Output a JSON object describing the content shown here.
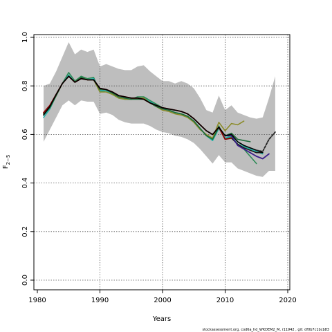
{
  "chart_data": {
    "type": "line",
    "title": "",
    "xlabel": "Years",
    "ylabel": "F",
    "ylabel_subscript": "2−5",
    "xlim": [
      1980,
      2020
    ],
    "ylim": [
      0,
      1
    ],
    "x_ticks": [
      1980,
      1990,
      2000,
      2010,
      2020
    ],
    "y_ticks": [
      0.0,
      0.2,
      0.4,
      0.6,
      0.8,
      1.0
    ],
    "y_tick_labels": [
      "0.0",
      "0.2",
      "0.4",
      "0.6",
      "0.8",
      "1.0"
    ],
    "grid": true,
    "confidence_band": {
      "color": "#bebebe",
      "x": [
        1981,
        1982,
        1983,
        1984,
        1985,
        1986,
        1987,
        1988,
        1989,
        1990,
        1991,
        1992,
        1993,
        1994,
        1995,
        1996,
        1997,
        1998,
        1999,
        2000,
        2001,
        2002,
        2003,
        2004,
        2005,
        2006,
        2007,
        2008,
        2009,
        2010,
        2011,
        2012,
        2013,
        2014,
        2015,
        2016,
        2017,
        2018
      ],
      "upper": [
        0.8,
        0.81,
        0.86,
        0.92,
        0.98,
        0.93,
        0.95,
        0.94,
        0.95,
        0.88,
        0.89,
        0.88,
        0.87,
        0.865,
        0.865,
        0.88,
        0.885,
        0.86,
        0.84,
        0.82,
        0.82,
        0.81,
        0.82,
        0.81,
        0.79,
        0.75,
        0.7,
        0.69,
        0.76,
        0.7,
        0.72,
        0.69,
        0.68,
        0.67,
        0.665,
        0.67,
        0.75,
        0.84
      ],
      "lower": [
        0.57,
        0.62,
        0.67,
        0.72,
        0.74,
        0.72,
        0.74,
        0.735,
        0.735,
        0.685,
        0.69,
        0.68,
        0.66,
        0.65,
        0.645,
        0.645,
        0.645,
        0.635,
        0.62,
        0.61,
        0.605,
        0.595,
        0.59,
        0.58,
        0.565,
        0.54,
        0.51,
        0.48,
        0.515,
        0.485,
        0.485,
        0.46,
        0.45,
        0.44,
        0.43,
        0.425,
        0.45,
        0.45
      ]
    },
    "series": [
      {
        "color": "#2e8b57",
        "width": 1.6,
        "dash": "",
        "x": [
          1981,
          1982,
          1983,
          1984,
          1985,
          1986,
          1987,
          1988,
          1989,
          1990,
          1991,
          1992,
          1993,
          1994,
          1995,
          1996,
          1997,
          1998,
          1999,
          2000,
          2001,
          2002,
          2003,
          2004,
          2005,
          2006,
          2007,
          2008,
          2009,
          2010,
          2011,
          2012,
          2013,
          2014,
          2015
        ],
        "values": [
          0.68,
          0.71,
          0.76,
          0.81,
          0.855,
          0.82,
          0.84,
          0.83,
          0.835,
          0.775,
          0.78,
          0.77,
          0.75,
          0.745,
          0.745,
          0.755,
          0.755,
          0.74,
          0.725,
          0.71,
          0.7,
          0.69,
          0.685,
          0.675,
          0.655,
          0.625,
          0.595,
          0.58,
          0.635,
          0.58,
          0.59,
          0.56,
          0.54,
          0.51,
          0.48
        ]
      },
      {
        "color": "#20b2aa",
        "width": 1.6,
        "dash": "",
        "x": [
          1981,
          1982,
          1983,
          1984,
          1985,
          1986,
          1987,
          1988,
          1989,
          1990,
          1991,
          1992,
          1993,
          1994,
          1995,
          1996,
          1997,
          1998,
          1999,
          2000,
          2001,
          2002,
          2003,
          2004,
          2005,
          2006,
          2007,
          2008,
          2009,
          2010,
          2011,
          2012,
          2013,
          2014,
          2015,
          2016
        ],
        "values": [
          0.67,
          0.705,
          0.76,
          0.81,
          0.845,
          0.815,
          0.835,
          0.825,
          0.83,
          0.78,
          0.78,
          0.765,
          0.75,
          0.745,
          0.745,
          0.75,
          0.75,
          0.735,
          0.72,
          0.71,
          0.7,
          0.69,
          0.685,
          0.675,
          0.655,
          0.625,
          0.595,
          0.575,
          0.625,
          0.585,
          0.595,
          0.57,
          0.55,
          0.54,
          0.53,
          0.52
        ]
      },
      {
        "color": "#8b8b2a",
        "width": 1.6,
        "dash": "",
        "x": [
          1981,
          1982,
          1983,
          1984,
          1985,
          1986,
          1987,
          1988,
          1989,
          1990,
          1991,
          1992,
          1993,
          1994,
          1995,
          1996,
          1997,
          1998,
          1999,
          2000,
          2001,
          2002,
          2003,
          2004,
          2005,
          2006,
          2007,
          2008,
          2009,
          2010,
          2011,
          2012,
          2013
        ],
        "values": [
          0.685,
          0.71,
          0.76,
          0.81,
          0.84,
          0.815,
          0.835,
          0.825,
          0.825,
          0.775,
          0.775,
          0.765,
          0.75,
          0.745,
          0.745,
          0.75,
          0.75,
          0.73,
          0.715,
          0.7,
          0.695,
          0.685,
          0.68,
          0.67,
          0.65,
          0.62,
          0.6,
          0.585,
          0.65,
          0.615,
          0.645,
          0.64,
          0.655
        ]
      },
      {
        "color": "#1c6b3a",
        "width": 1.6,
        "dash": "",
        "x": [
          1981,
          1982,
          1983,
          1984,
          1985,
          1986,
          1987,
          1988,
          1989,
          1990,
          1991,
          1992,
          1993,
          1994,
          1995,
          1996,
          1997,
          1998,
          1999,
          2000,
          2001,
          2002,
          2003,
          2004,
          2005,
          2006,
          2007,
          2008,
          2009,
          2010,
          2011,
          2012,
          2013,
          2014
        ],
        "values": [
          0.685,
          0.71,
          0.76,
          0.81,
          0.84,
          0.815,
          0.835,
          0.825,
          0.825,
          0.785,
          0.785,
          0.77,
          0.755,
          0.75,
          0.745,
          0.745,
          0.745,
          0.73,
          0.715,
          0.705,
          0.7,
          0.69,
          0.685,
          0.675,
          0.655,
          0.625,
          0.595,
          0.58,
          0.63,
          0.595,
          0.605,
          0.58,
          0.575,
          0.57
        ]
      },
      {
        "color": "#1a1a1a",
        "width": 1.6,
        "dash": "",
        "x": [
          2011,
          2012,
          2013,
          2014,
          2015,
          2016
        ],
        "values": [
          0.585,
          0.56,
          0.545,
          0.535,
          0.525,
          0.525
        ]
      },
      {
        "color": "#3b1e8a",
        "width": 1.8,
        "dash": "",
        "x": [
          2010,
          2011,
          2012,
          2013,
          2014,
          2015,
          2016,
          2017
        ],
        "values": [
          0.595,
          0.595,
          0.555,
          0.54,
          0.525,
          0.51,
          0.5,
          0.52
        ]
      },
      {
        "color": "#8b0000",
        "width": 1.8,
        "dash": "",
        "x": [
          1981,
          1982,
          1983,
          1984,
          1985,
          1986,
          1987,
          1988,
          1989,
          1990,
          1991,
          1992,
          1993,
          1994,
          1995,
          1996,
          1997,
          1998,
          1999,
          2000,
          2001,
          2002,
          2003,
          2004,
          2005,
          2006,
          2007,
          2008,
          2009,
          2010,
          2011
        ],
        "values": [
          0.69,
          0.72,
          0.765,
          0.81,
          0.84,
          0.815,
          0.83,
          0.825,
          0.825,
          0.79,
          0.785,
          0.775,
          0.76,
          0.755,
          0.75,
          0.75,
          0.745,
          0.73,
          0.72,
          0.71,
          0.705,
          0.7,
          0.695,
          0.685,
          0.665,
          0.64,
          0.615,
          0.6,
          0.63,
          0.58,
          0.585
        ]
      },
      {
        "color": "#000000",
        "width": 1.6,
        "dash": "",
        "x": [
          1981,
          1982,
          1983,
          1984,
          1985,
          1986,
          1987,
          1988,
          1989,
          1990,
          1991,
          1992,
          1993,
          1994,
          1995,
          1996,
          1997,
          1998,
          1999,
          2000,
          2001,
          2002,
          2003,
          2004,
          2005,
          2006,
          2007,
          2008,
          2009,
          2010,
          2011,
          2012,
          2013,
          2014,
          2015,
          2016
        ],
        "values": [
          0.68,
          0.715,
          0.765,
          0.81,
          0.84,
          0.815,
          0.83,
          0.825,
          0.825,
          0.79,
          0.785,
          0.775,
          0.76,
          0.755,
          0.75,
          0.75,
          0.745,
          0.73,
          0.72,
          0.71,
          0.705,
          0.7,
          0.695,
          0.685,
          0.665,
          0.64,
          0.615,
          0.6,
          0.63,
          0.595,
          0.6,
          0.57,
          0.555,
          0.545,
          0.535,
          0.525
        ]
      },
      {
        "color": "#222222",
        "width": 1.8,
        "dash": "3,2",
        "x": [
          2015,
          2016,
          2017,
          2018
        ],
        "values": [
          0.535,
          0.53,
          0.58,
          0.61
        ]
      }
    ]
  },
  "footer_note": "stockassessment.org, cod6a_hd_WKDEM2_M, r11942 , git: df0b7c1bcb83"
}
